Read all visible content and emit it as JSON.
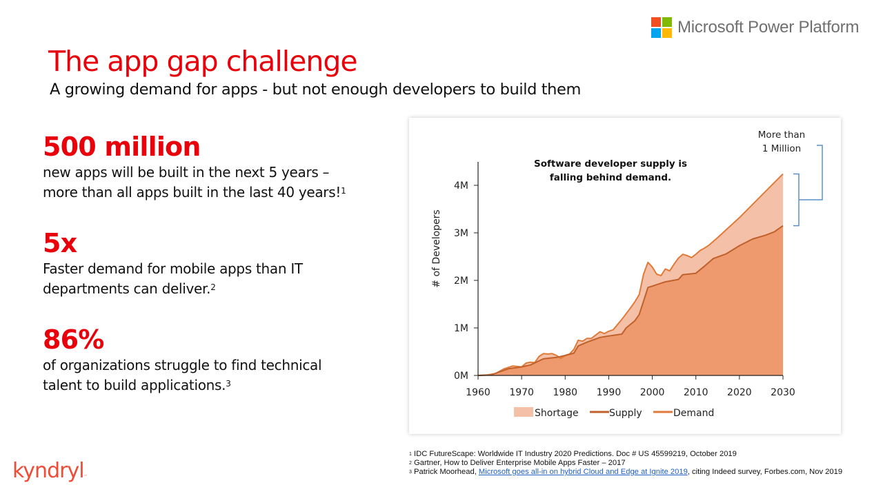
{
  "brand": {
    "logo_text": "Microsoft Power Platform",
    "logo_colors": [
      "#f25022",
      "#7fba00",
      "#00a4ef",
      "#ffb900"
    ],
    "footer_logo": "kyndryl",
    "accent_color": "#e8000b"
  },
  "header": {
    "title": "The app gap challenge",
    "subtitle": "A growing demand for apps - but not enough developers to build them"
  },
  "stats": [
    {
      "value": "500 million",
      "line1": "new apps will be built in the next 5 years –",
      "line2": "more than all apps built in the last 40 years!",
      "ref": "1"
    },
    {
      "value": "5x",
      "line1": "Faster demand for mobile apps than IT",
      "line2": "departments can deliver.",
      "ref": "2"
    },
    {
      "value": "86%",
      "line1": "of organizations struggle to find technical",
      "line2": "talent to build applications.",
      "ref": "3"
    }
  ],
  "footnotes": [
    {
      "ref": "1",
      "text": "IDC FutureScape: Worldwide IT Industry 2020 Predictions. Doc # US 45599219, October 2019"
    },
    {
      "ref": "2",
      "text": "Gartner, How to Deliver Enterprise Mobile Apps Faster – 2017"
    },
    {
      "ref": "3",
      "pre": "Patrick Moorhead, ",
      "link": "Microsoft goes all-in on hybrid Cloud and Edge at Ignite 2019",
      "post": ", citing Indeed survey, Forbes.com, Nov 2019"
    }
  ],
  "chart_data": {
    "type": "area",
    "title": "",
    "annotation": [
      "Software developer supply is",
      "falling behind demand."
    ],
    "callout": [
      "More than",
      "1 Million"
    ],
    "xlabel": "",
    "ylabel": "# of Developers",
    "xlim": [
      1960,
      2030
    ],
    "ylim": [
      0,
      4.5
    ],
    "x_ticks": [
      1960,
      1970,
      1980,
      1990,
      2000,
      2010,
      2020,
      2030
    ],
    "x_tick_labels": [
      "1960",
      "1970",
      "1980",
      "1990",
      "2000",
      "2010",
      "2020",
      "2030"
    ],
    "y_ticks": [
      0,
      1,
      2,
      3,
      4
    ],
    "y_tick_labels": [
      "0M",
      "1M",
      "2M",
      "3M",
      "4M"
    ],
    "units": "millions of developers",
    "grid": false,
    "legend": {
      "position": "bottom",
      "entries": [
        "Shortage",
        "Supply",
        "Demand"
      ]
    },
    "colors": {
      "supply_fill": "#ef9a6e",
      "shortage_fill": "#f4c0a8",
      "supply_line": "#c0602a",
      "demand_line": "#e07a38",
      "bracket": "#5b8fc9"
    },
    "series": [
      {
        "name": "Demand",
        "points": [
          [
            1960,
            0
          ],
          [
            1962,
            0.01
          ],
          [
            1964,
            0.04
          ],
          [
            1966,
            0.14
          ],
          [
            1968,
            0.2
          ],
          [
            1970,
            0.18
          ],
          [
            1971,
            0.26
          ],
          [
            1972,
            0.28
          ],
          [
            1973,
            0.27
          ],
          [
            1974,
            0.4
          ],
          [
            1975,
            0.46
          ],
          [
            1976,
            0.45
          ],
          [
            1977,
            0.46
          ],
          [
            1978,
            0.42
          ],
          [
            1979,
            0.36
          ],
          [
            1980,
            0.42
          ],
          [
            1981,
            0.45
          ],
          [
            1982,
            0.55
          ],
          [
            1983,
            0.74
          ],
          [
            1984,
            0.72
          ],
          [
            1985,
            0.78
          ],
          [
            1986,
            0.78
          ],
          [
            1987,
            0.85
          ],
          [
            1988,
            0.92
          ],
          [
            1989,
            0.88
          ],
          [
            1990,
            0.93
          ],
          [
            1991,
            0.96
          ],
          [
            1992,
            1.07
          ],
          [
            1993,
            1.18
          ],
          [
            1994,
            1.3
          ],
          [
            1995,
            1.42
          ],
          [
            1996,
            1.55
          ],
          [
            1997,
            1.7
          ],
          [
            1998,
            2.13
          ],
          [
            1999,
            2.38
          ],
          [
            2000,
            2.28
          ],
          [
            2001,
            2.13
          ],
          [
            2002,
            2.1
          ],
          [
            2003,
            2.24
          ],
          [
            2004,
            2.2
          ],
          [
            2005,
            2.34
          ],
          [
            2006,
            2.47
          ],
          [
            2007,
            2.55
          ],
          [
            2008,
            2.52
          ],
          [
            2009,
            2.48
          ],
          [
            2010,
            2.55
          ],
          [
            2011,
            2.63
          ],
          [
            2012,
            2.68
          ],
          [
            2013,
            2.74
          ],
          [
            2015,
            2.9
          ],
          [
            2020,
            3.32
          ],
          [
            2025,
            3.78
          ],
          [
            2030,
            4.24
          ]
        ]
      },
      {
        "name": "Supply",
        "points": [
          [
            1960,
            0
          ],
          [
            1963,
            0.01
          ],
          [
            1965,
            0.08
          ],
          [
            1967,
            0.14
          ],
          [
            1970,
            0.18
          ],
          [
            1972,
            0.22
          ],
          [
            1975,
            0.35
          ],
          [
            1978,
            0.38
          ],
          [
            1980,
            0.42
          ],
          [
            1982,
            0.47
          ],
          [
            1983,
            0.62
          ],
          [
            1985,
            0.7
          ],
          [
            1988,
            0.8
          ],
          [
            1990,
            0.83
          ],
          [
            1993,
            0.87
          ],
          [
            1994,
            1.0
          ],
          [
            1996,
            1.15
          ],
          [
            1997,
            1.28
          ],
          [
            1999,
            1.85
          ],
          [
            2000,
            1.88
          ],
          [
            2003,
            1.97
          ],
          [
            2006,
            2.02
          ],
          [
            2007,
            2.12
          ],
          [
            2010,
            2.15
          ],
          [
            2012,
            2.3
          ],
          [
            2014,
            2.46
          ],
          [
            2017,
            2.56
          ],
          [
            2020,
            2.73
          ],
          [
            2023,
            2.87
          ],
          [
            2026,
            2.95
          ],
          [
            2028,
            3.02
          ],
          [
            2030,
            3.15
          ]
        ]
      }
    ]
  }
}
